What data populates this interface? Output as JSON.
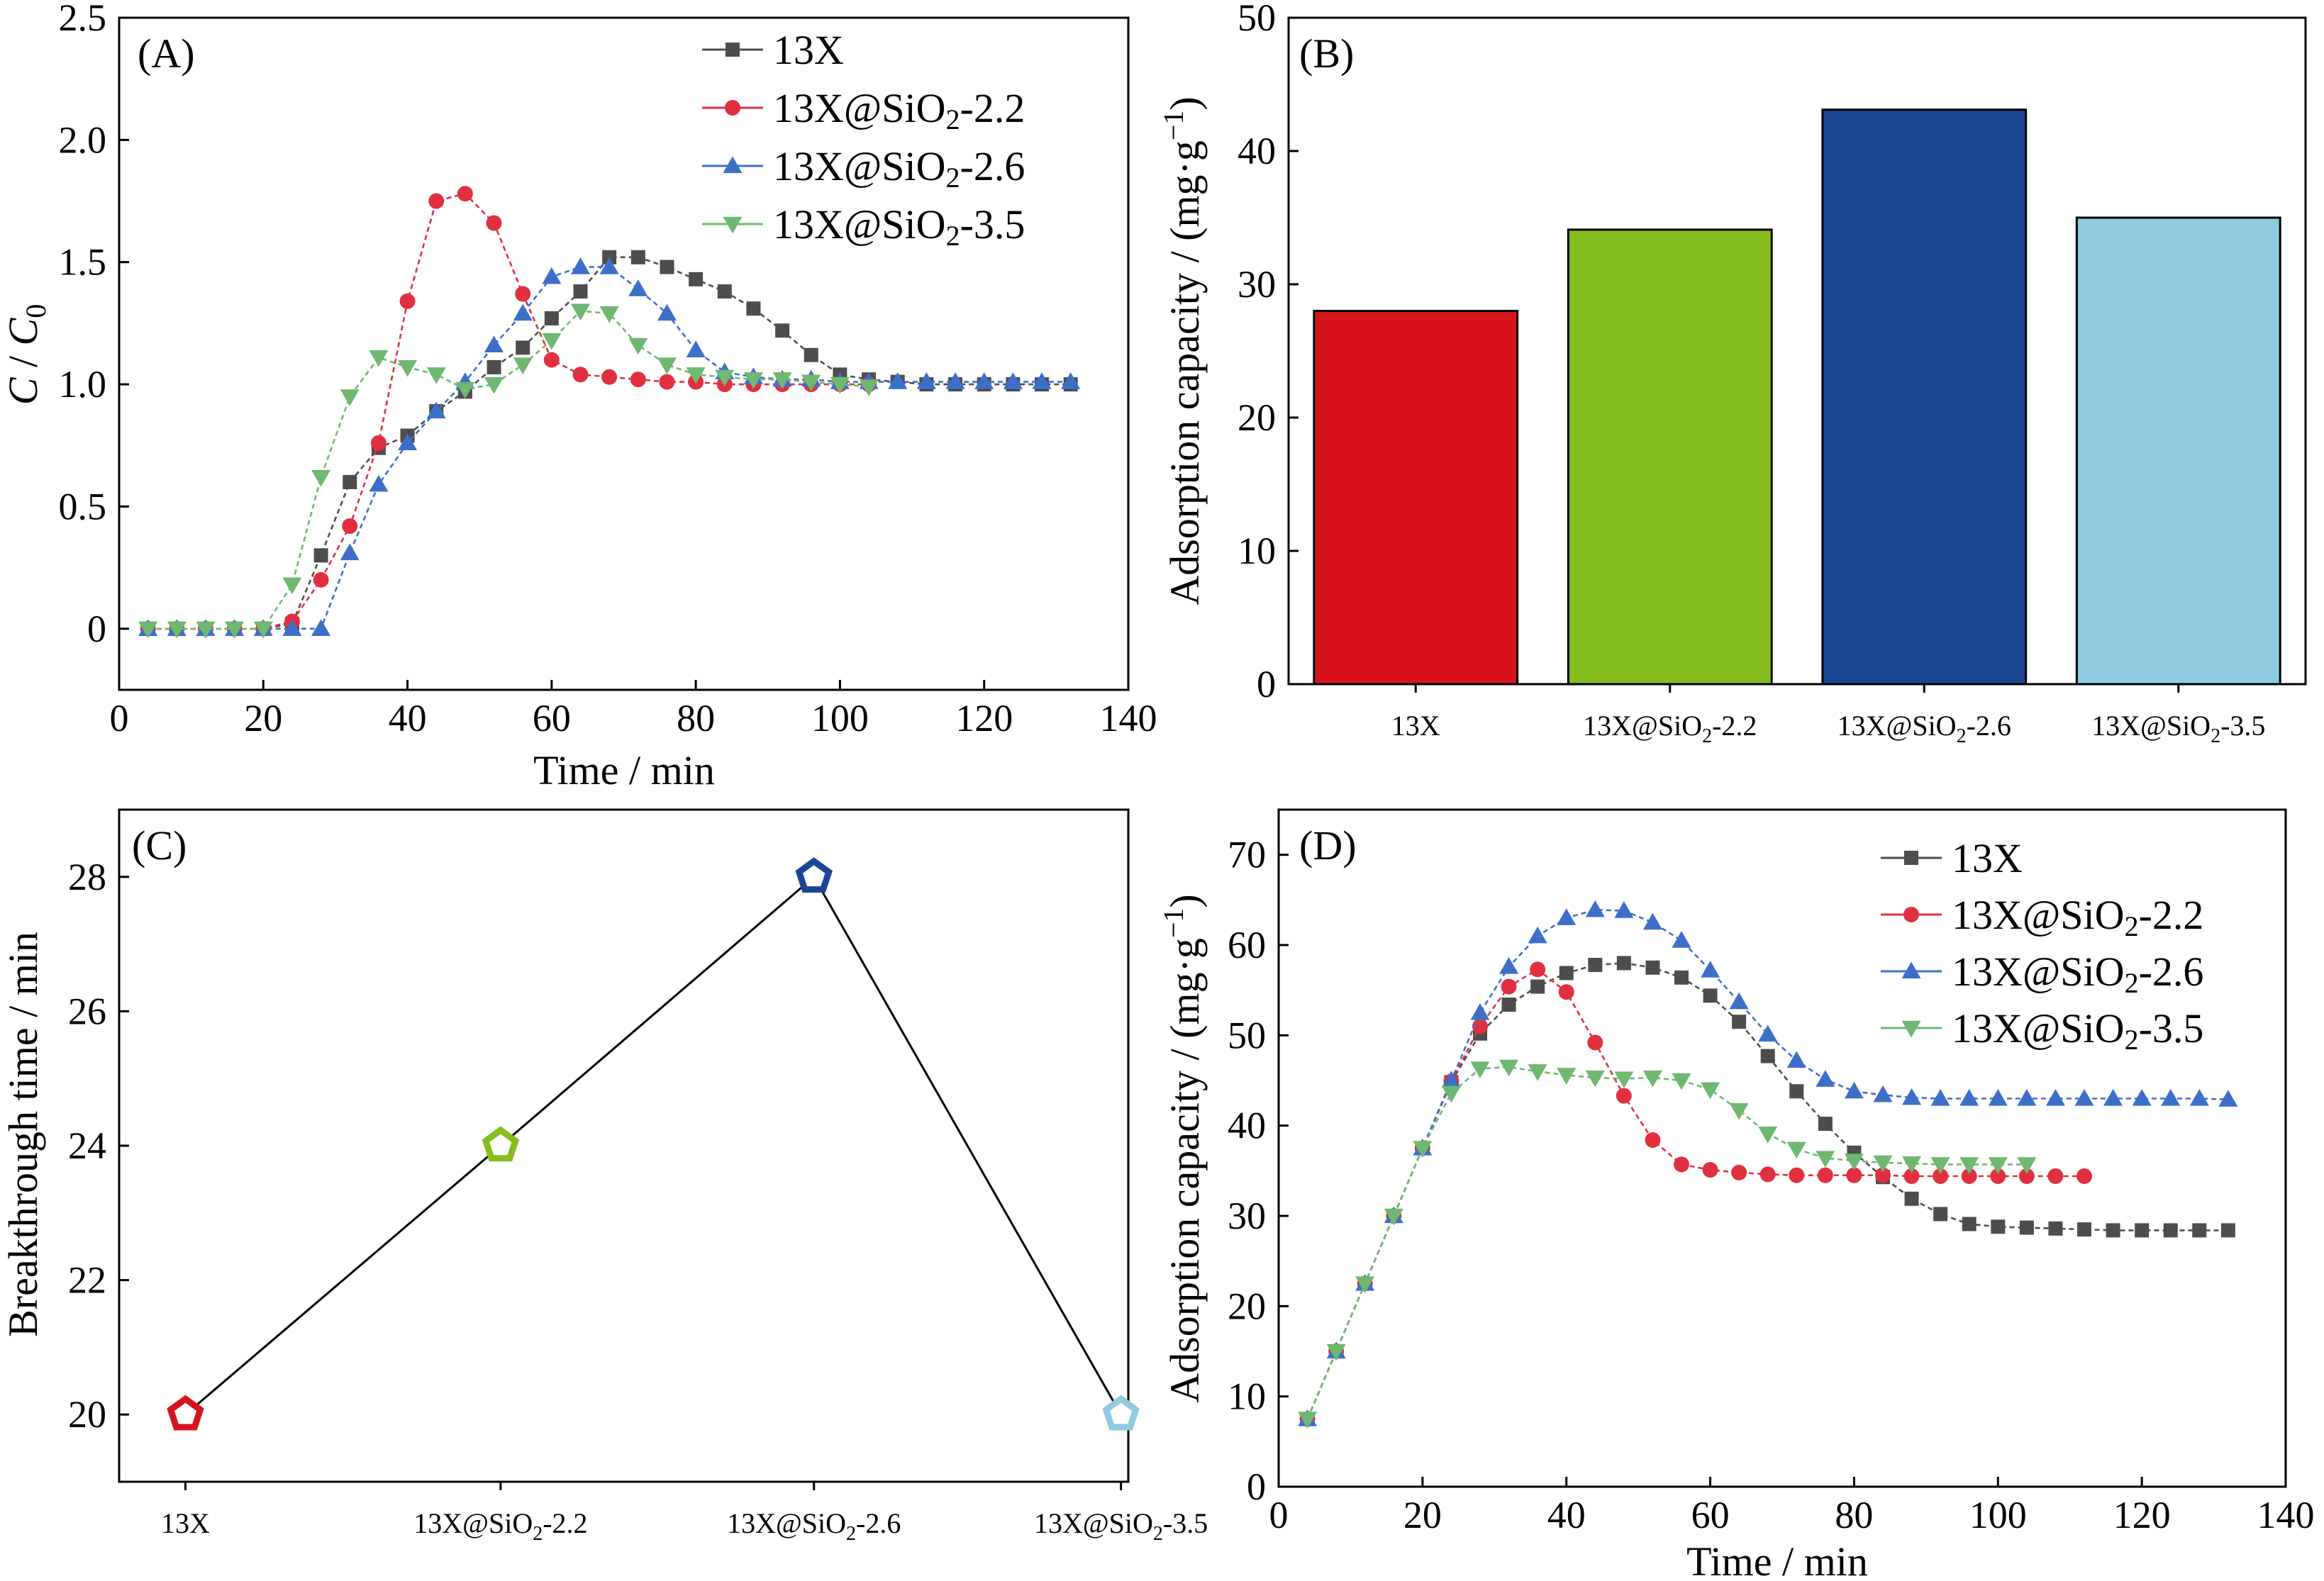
{
  "colors": {
    "s13X": "#4d4d4d",
    "s22": "#e03040",
    "s26": "#3d6fc9",
    "s35": "#6fb86f",
    "barA": "#d7141d",
    "barB": "#84bd1e",
    "barC": "#1c4694",
    "barD": "#90cbe1"
  },
  "chart_data": [
    {
      "panel": "(A)",
      "type": "line",
      "xlabel": "Time / min",
      "ylabel_main": "C",
      "ylabel_sep": " / ",
      "ylabel_sub_base": "C",
      "ylabel_sub": "0",
      "xlim": [
        0,
        140
      ],
      "ylim": [
        -0.25,
        2.5
      ],
      "xticks": [
        "0",
        "20",
        "40",
        "60",
        "80",
        "100",
        "120",
        "140"
      ],
      "yticks": [
        "0",
        "0.5",
        "1.0",
        "1.5",
        "2.0",
        "2.5"
      ],
      "legend_position": "top-right",
      "series": [
        {
          "name_main": "13X",
          "name_sub": "",
          "name_tail": "",
          "color_key": "s13X",
          "marker": "square",
          "x": [
            4,
            8,
            12,
            16,
            20,
            24,
            28,
            32,
            36,
            40,
            44,
            48,
            52,
            56,
            60,
            64,
            68,
            72,
            76,
            80,
            84,
            88,
            92,
            96,
            100,
            104,
            108,
            112,
            116,
            120,
            124,
            128,
            132
          ],
          "y": [
            0,
            0,
            0,
            0,
            0,
            0.02,
            0.3,
            0.6,
            0.74,
            0.79,
            0.89,
            0.97,
            1.07,
            1.15,
            1.27,
            1.38,
            1.52,
            1.52,
            1.48,
            1.43,
            1.38,
            1.31,
            1.22,
            1.12,
            1.04,
            1.02,
            1.01,
            1.0,
            1.0,
            1.0,
            1.0,
            1.0,
            1.0
          ]
        },
        {
          "name_main": "13X@SiO",
          "name_sub": "2",
          "name_tail": "-2.2",
          "color_key": "s22",
          "marker": "circle",
          "x": [
            4,
            8,
            12,
            16,
            20,
            24,
            28,
            32,
            36,
            40,
            44,
            48,
            52,
            56,
            60,
            64,
            68,
            72,
            76,
            80,
            84,
            88,
            92,
            96,
            100,
            104
          ],
          "y": [
            0,
            0,
            0,
            0,
            0,
            0.03,
            0.2,
            0.42,
            0.76,
            1.34,
            1.75,
            1.78,
            1.66,
            1.37,
            1.1,
            1.04,
            1.03,
            1.02,
            1.01,
            1.01,
            1.0,
            1.0,
            1.0,
            1.0,
            1.0,
            1.0
          ]
        },
        {
          "name_main": "13X@SiO",
          "name_sub": "2",
          "name_tail": "-2.6",
          "color_key": "s26",
          "marker": "triangle-up",
          "x": [
            4,
            8,
            12,
            16,
            20,
            24,
            28,
            32,
            36,
            40,
            44,
            48,
            52,
            56,
            60,
            64,
            68,
            72,
            76,
            80,
            84,
            88,
            92,
            96,
            100,
            104,
            108,
            112,
            116,
            120,
            124,
            128,
            132
          ],
          "y": [
            0,
            0,
            0,
            0,
            0,
            0,
            0,
            0.31,
            0.59,
            0.76,
            0.89,
            1.01,
            1.16,
            1.29,
            1.44,
            1.48,
            1.48,
            1.39,
            1.29,
            1.14,
            1.05,
            1.03,
            1.02,
            1.02,
            1.01,
            1.01,
            1.01,
            1.01,
            1.01,
            1.01,
            1.01,
            1.01,
            1.01
          ]
        },
        {
          "name_main": "13X@SiO",
          "name_sub": "2",
          "name_tail": "-3.5",
          "color_key": "s35",
          "marker": "triangle-down",
          "x": [
            4,
            8,
            12,
            16,
            20,
            24,
            28,
            32,
            36,
            40,
            44,
            48,
            52,
            56,
            60,
            64,
            68,
            72,
            76,
            80,
            84,
            88,
            92,
            96,
            100,
            104
          ],
          "y": [
            0,
            0,
            0,
            0,
            0,
            0.18,
            0.62,
            0.95,
            1.11,
            1.07,
            1.04,
            0.98,
            1.0,
            1.08,
            1.18,
            1.3,
            1.29,
            1.16,
            1.08,
            1.04,
            1.03,
            1.02,
            1.02,
            1.01,
            1.0,
            0.99
          ]
        }
      ]
    },
    {
      "panel": "(B)",
      "type": "bar",
      "ylabel": "Adsorption capacity / (mg·g",
      "ylabel_sup": "−1",
      "ylabel_close": ")",
      "ylim": [
        0,
        50
      ],
      "yticks": [
        "0",
        "10",
        "20",
        "30",
        "40",
        "50"
      ],
      "categories": [
        {
          "main": "13X",
          "sub": "",
          "tail": ""
        },
        {
          "main": "13X@SiO",
          "sub": "2",
          "tail": "-2.2"
        },
        {
          "main": "13X@SiO",
          "sub": "2",
          "tail": "-2.6"
        },
        {
          "main": "13X@SiO",
          "sub": "2",
          "tail": "-3.5"
        }
      ],
      "values": [
        28,
        34.1,
        43.1,
        35
      ],
      "bar_color_keys": [
        "barA",
        "barB",
        "barC",
        "barD"
      ]
    },
    {
      "panel": "(C)",
      "type": "line",
      "ylabel": "Breakthrough time / min",
      "ylim": [
        19,
        29
      ],
      "yticks": [
        "20",
        "22",
        "24",
        "26",
        "28"
      ],
      "categories": [
        {
          "main": "13X",
          "sub": "",
          "tail": ""
        },
        {
          "main": "13X@SiO",
          "sub": "2",
          "tail": "-2.2"
        },
        {
          "main": "13X@SiO",
          "sub": "2",
          "tail": "-2.6"
        },
        {
          "main": "13X@SiO",
          "sub": "2",
          "tail": "-3.5"
        }
      ],
      "values": [
        20,
        24,
        28,
        20
      ],
      "marker": "pentagon",
      "point_color_keys": [
        "barA",
        "barB",
        "barC",
        "barD"
      ]
    },
    {
      "panel": "(D)",
      "type": "line",
      "xlabel": "Time / min",
      "ylabel": "Adsorption capacity / (mg·g",
      "ylabel_sup": "−1",
      "ylabel_close": ")",
      "xlim": [
        0,
        140
      ],
      "ylim": [
        0,
        75
      ],
      "xticks": [
        "0",
        "20",
        "40",
        "60",
        "80",
        "100",
        "120",
        "140"
      ],
      "yticks": [
        "0",
        "10",
        "20",
        "30",
        "40",
        "50",
        "60",
        "70"
      ],
      "legend_position": "top-right",
      "series": [
        {
          "name_main": "13X",
          "name_sub": "",
          "name_tail": "",
          "color_key": "s13X",
          "marker": "square",
          "x": [
            4,
            8,
            12,
            16,
            20,
            24,
            28,
            32,
            36,
            40,
            44,
            48,
            52,
            56,
            60,
            64,
            68,
            72,
            76,
            80,
            84,
            88,
            92,
            96,
            100,
            104,
            108,
            112,
            116,
            120,
            124,
            128,
            132
          ],
          "y": [
            7.5,
            15,
            22.5,
            30,
            37.5,
            44.8,
            50.2,
            53.4,
            55.4,
            56.9,
            57.8,
            58.0,
            57.5,
            56.4,
            54.4,
            51.5,
            47.7,
            43.8,
            40.2,
            37.0,
            34.3,
            31.9,
            30.2,
            29.1,
            28.8,
            28.7,
            28.6,
            28.5,
            28.4,
            28.4,
            28.4,
            28.4,
            28.4
          ]
        },
        {
          "name_main": "13X@SiO",
          "name_sub": "2",
          "name_tail": "-2.2",
          "color_key": "s22",
          "marker": "circle",
          "x": [
            4,
            8,
            12,
            16,
            20,
            24,
            28,
            32,
            36,
            40,
            44,
            48,
            52,
            56,
            60,
            64,
            68,
            72,
            76,
            80,
            84,
            88,
            92,
            96,
            100,
            104,
            108,
            112
          ],
          "y": [
            7.5,
            15,
            22.5,
            30,
            37.5,
            44.9,
            51.0,
            55.4,
            57.3,
            54.8,
            49.2,
            43.3,
            38.4,
            35.7,
            35.1,
            34.8,
            34.6,
            34.5,
            34.5,
            34.5,
            34.5,
            34.4,
            34.4,
            34.4,
            34.4,
            34.4,
            34.4,
            34.4
          ]
        },
        {
          "name_main": "13X@SiO",
          "name_sub": "2",
          "name_tail": "-2.6",
          "color_key": "s26",
          "marker": "triangle-up",
          "x": [
            4,
            8,
            12,
            16,
            20,
            24,
            28,
            32,
            36,
            40,
            44,
            48,
            52,
            56,
            60,
            64,
            68,
            72,
            76,
            80,
            84,
            88,
            92,
            96,
            100,
            104,
            108,
            112,
            116,
            120,
            124,
            128,
            132
          ],
          "y": [
            7.5,
            15,
            22.5,
            30,
            37.5,
            45.0,
            52.5,
            57.6,
            61.0,
            63.0,
            63.9,
            63.8,
            62.5,
            60.5,
            57.2,
            53.7,
            50.1,
            47.2,
            45.1,
            43.8,
            43.4,
            43.1,
            43.0,
            43.0,
            43.0,
            43.0,
            43.0,
            43.0,
            43.0,
            43.0,
            43.0,
            43.0,
            42.9
          ]
        },
        {
          "name_main": "13X@SiO",
          "name_sub": "2",
          "name_tail": "-3.5",
          "color_key": "s35",
          "marker": "triangle-down",
          "x": [
            4,
            8,
            12,
            16,
            20,
            24,
            28,
            32,
            36,
            40,
            44,
            48,
            52,
            56,
            60,
            64,
            68,
            72,
            76,
            80,
            84,
            88,
            92,
            96,
            100,
            104
          ],
          "y": [
            7.5,
            15,
            22.5,
            30,
            37.5,
            43.6,
            46.3,
            46.5,
            46.0,
            45.6,
            45.3,
            45.2,
            45.3,
            45.0,
            44.0,
            41.7,
            39.1,
            37.4,
            36.4,
            36.1,
            35.9,
            35.8,
            35.7,
            35.7,
            35.7,
            35.7
          ]
        }
      ]
    }
  ]
}
